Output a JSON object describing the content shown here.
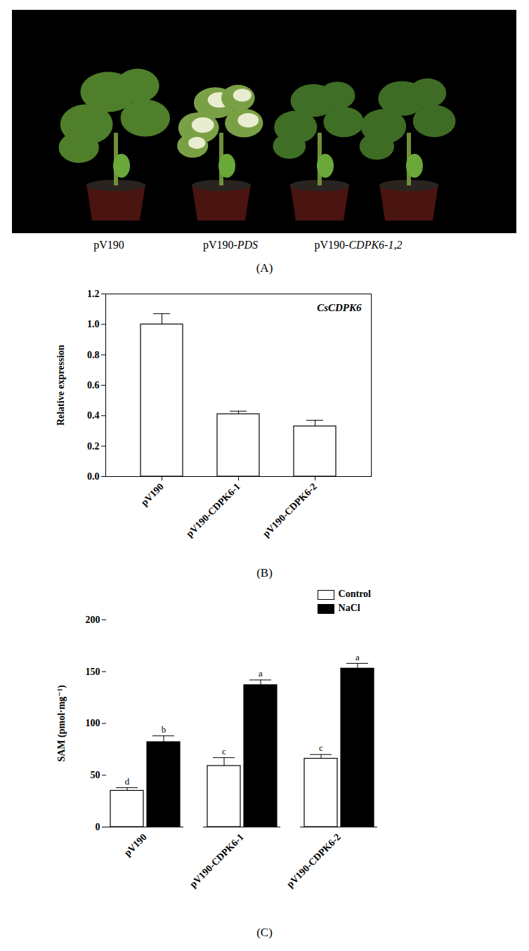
{
  "photo_panel": {
    "labels": [
      "pV190",
      "pV190-PDS",
      "pV190-CDPK6-1,2"
    ],
    "caption": "(A)"
  },
  "chart_data": [
    {
      "type": "bar",
      "title": "CsCDPK6",
      "caption": "(B)",
      "categories": [
        "pV190",
        "pV190-CDPK6-1",
        "pV190-CDPK6-2"
      ],
      "values": [
        1.0,
        0.41,
        0.33
      ],
      "errors": [
        0.07,
        0.02,
        0.04
      ],
      "color": "#ffffff",
      "ylabel": "Relative expression",
      "ylim": [
        0,
        1.2
      ],
      "yticks": [
        {
          "value": 0,
          "label": "0.0"
        },
        {
          "value": 0.2,
          "label": "0.2"
        },
        {
          "value": 0.4,
          "label": "0.4"
        },
        {
          "value": 0.6,
          "label": "0.6"
        },
        {
          "value": 0.8,
          "label": "0.8"
        },
        {
          "value": 1.0,
          "label": "1.0"
        },
        {
          "value": 1.2,
          "label": "1.2"
        }
      ]
    },
    {
      "type": "bar",
      "caption": "(C)",
      "categories": [
        "pV190",
        "pV190-CDPK6-1",
        "pV190-CDPK6-2"
      ],
      "ylabel": "SAM (pmol·mg⁻¹)",
      "ylim": [
        0,
        200
      ],
      "yticks": [
        0,
        50,
        100,
        150,
        200
      ],
      "legend": "top-right",
      "series": [
        {
          "name": "Control",
          "color": "#ffffff",
          "values": [
            35,
            59,
            66
          ],
          "errors": [
            3,
            8,
            4
          ],
          "letters": [
            "d",
            "c",
            "c"
          ]
        },
        {
          "name": "NaCl",
          "color": "#000000",
          "values": [
            82,
            137,
            153
          ],
          "errors": [
            6,
            5,
            5
          ],
          "letters": [
            "b",
            "a",
            "a"
          ]
        }
      ]
    }
  ]
}
